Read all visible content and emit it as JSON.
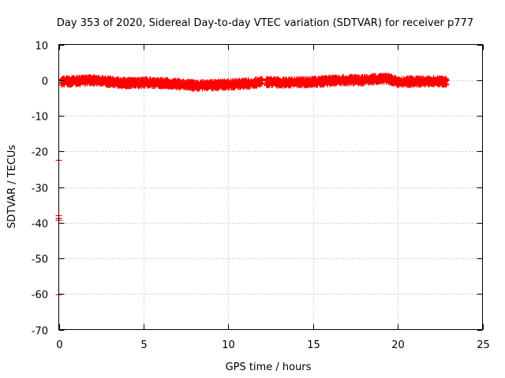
{
  "chart_data": {
    "type": "scatter",
    "title": "Day 353 of 2020, Sidereal Day-to-day VTEC variation (SDTVAR) for receiver p777",
    "xlabel": "GPS time / hours",
    "ylabel": "SDTVAR / TECUs",
    "xlim": [
      0,
      25
    ],
    "ylim": [
      -70,
      10
    ],
    "xticks": [
      0,
      5,
      10,
      15,
      20,
      25
    ],
    "xtick_labels": [
      "0",
      "5",
      "10",
      "15",
      "20",
      "25"
    ],
    "yticks": [
      10,
      0,
      -10,
      -20,
      -30,
      -40,
      -50,
      -60,
      -70
    ],
    "ytick_labels": [
      "10",
      "0",
      "-10",
      "-20",
      "-30",
      "-40",
      "-50",
      "-60",
      "-70"
    ],
    "grid": true,
    "series": [
      {
        "name": "SDTVAR",
        "color": "#ff0000",
        "marker": "plus",
        "segments": [
          {
            "x_start": 0.15,
            "x_end": 12.0
          },
          {
            "x_start": 12.25,
            "x_end": 22.9
          }
        ],
        "trend": [
          {
            "x": 0.15,
            "y": -0.4
          },
          {
            "x": 1.0,
            "y": -0.3
          },
          {
            "x": 2.0,
            "y": 0.0
          },
          {
            "x": 3.0,
            "y": -0.5
          },
          {
            "x": 4.0,
            "y": -0.8
          },
          {
            "x": 5.0,
            "y": -0.7
          },
          {
            "x": 6.0,
            "y": -0.8
          },
          {
            "x": 7.0,
            "y": -1.1
          },
          {
            "x": 8.0,
            "y": -1.5
          },
          {
            "x": 9.0,
            "y": -1.4
          },
          {
            "x": 10.0,
            "y": -1.2
          },
          {
            "x": 11.0,
            "y": -1.0
          },
          {
            "x": 12.0,
            "y": -0.5
          },
          {
            "x": 13.0,
            "y": -0.7
          },
          {
            "x": 14.0,
            "y": -0.6
          },
          {
            "x": 15.0,
            "y": -0.5
          },
          {
            "x": 16.0,
            "y": -0.2
          },
          {
            "x": 17.0,
            "y": 0.0
          },
          {
            "x": 18.0,
            "y": 0.0
          },
          {
            "x": 19.0,
            "y": 0.5
          },
          {
            "x": 19.5,
            "y": 0.3
          },
          {
            "x": 20.0,
            "y": -0.5
          },
          {
            "x": 21.0,
            "y": -0.4
          },
          {
            "x": 22.0,
            "y": -0.3
          },
          {
            "x": 22.9,
            "y": -0.4
          }
        ],
        "outliers": [
          {
            "x": 0.0,
            "y": -22.5
          },
          {
            "x": 0.0,
            "y": -38.0
          },
          {
            "x": 0.0,
            "y": -38.8
          },
          {
            "x": 0.0,
            "y": -39.3
          },
          {
            "x": 0.0,
            "y": -60.2
          }
        ]
      }
    ]
  }
}
